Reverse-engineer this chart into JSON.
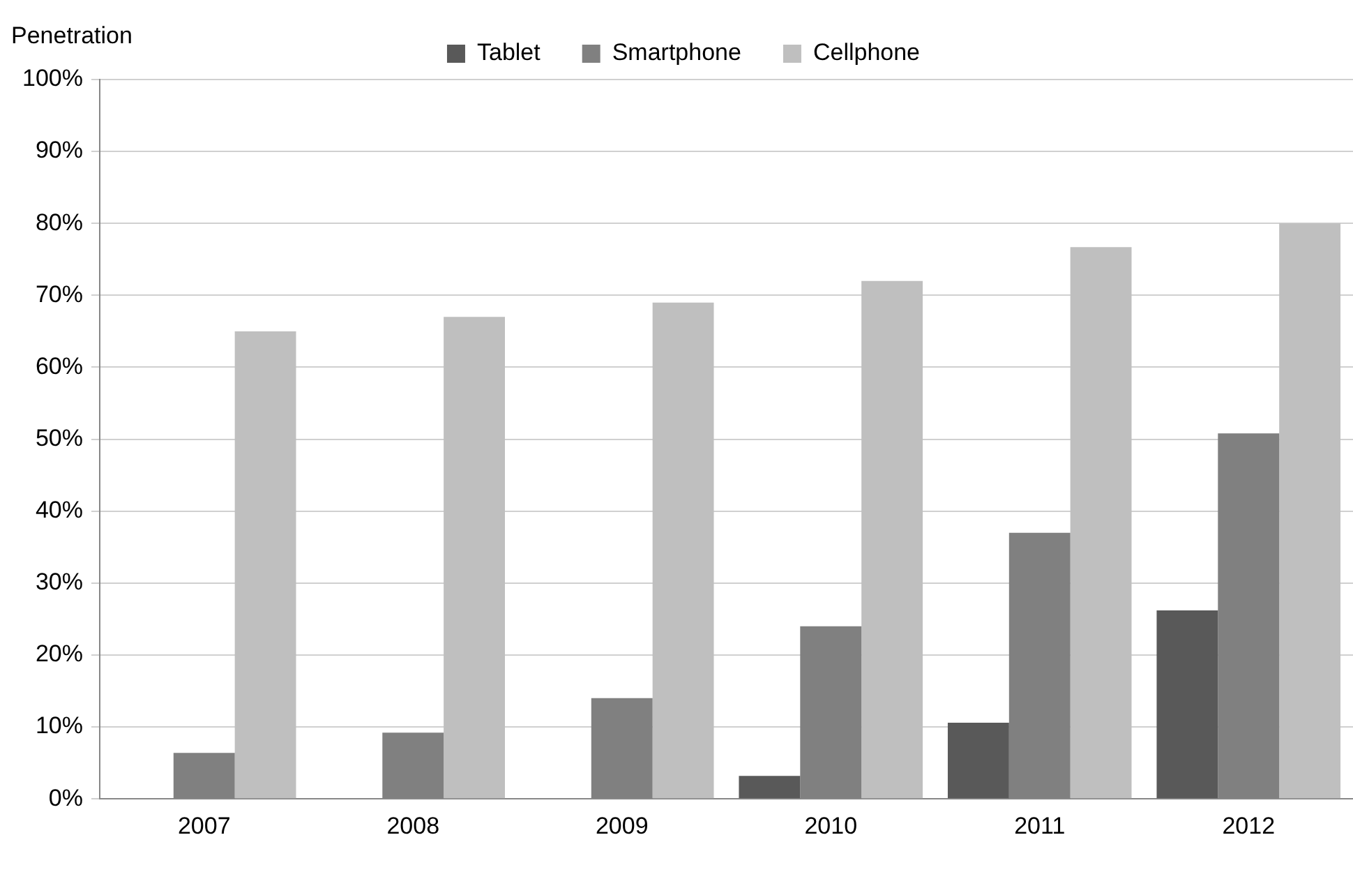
{
  "chart_data": {
    "type": "bar",
    "ylabel": "Penetration",
    "categories": [
      "2007",
      "2008",
      "2009",
      "2010",
      "2011",
      "2012"
    ],
    "series": [
      {
        "name": "Tablet",
        "color": "#595959",
        "values": [
          0,
          0,
          0,
          3.2,
          10.6,
          26.2
        ]
      },
      {
        "name": "Smartphone",
        "color": "#808080",
        "values": [
          6.4,
          9.2,
          14,
          24,
          37,
          50.8
        ]
      },
      {
        "name": "Cellphone",
        "color": "#bfbfbf",
        "values": [
          65,
          67,
          69,
          72,
          76.7,
          80
        ]
      }
    ],
    "ylim": [
      0,
      100
    ],
    "yticks": [
      {
        "value": 0,
        "label": "0%"
      },
      {
        "value": 10,
        "label": "10%"
      },
      {
        "value": 20,
        "label": "20%"
      },
      {
        "value": 30,
        "label": "30%"
      },
      {
        "value": 40,
        "label": "40%"
      },
      {
        "value": 50,
        "label": "50%"
      },
      {
        "value": 60,
        "label": "60%"
      },
      {
        "value": 70,
        "label": "70%"
      },
      {
        "value": 80,
        "label": "80%"
      },
      {
        "value": 90,
        "label": "90%"
      },
      {
        "value": 100,
        "label": "100%"
      }
    ],
    "grid": "y",
    "legend": "top"
  }
}
